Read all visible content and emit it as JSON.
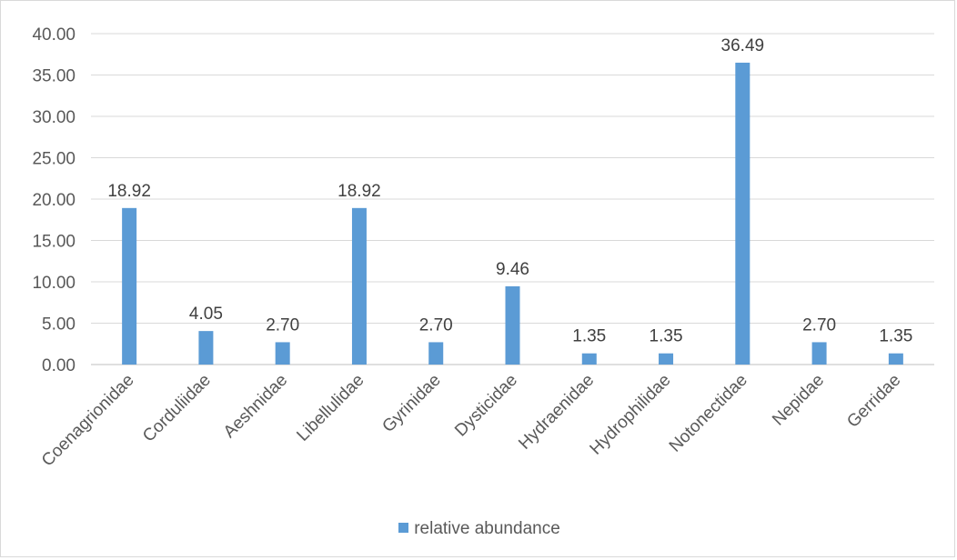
{
  "chart_data": {
    "type": "bar",
    "categories": [
      "Coenagrionidae",
      "Corduliidae",
      "Aeshnidae",
      "Libellulidae",
      "Gyrinidae",
      "Dysticidae",
      "Hydraenidae",
      "Hydrophilidae",
      "Notonectidae",
      "Nepidae",
      "Gerridae"
    ],
    "series": [
      {
        "name": "relative abundance",
        "values": [
          18.92,
          4.05,
          2.7,
          18.92,
          2.7,
          9.46,
          1.35,
          1.35,
          36.49,
          2.7,
          1.35
        ],
        "labels": [
          "18.92",
          "4.05",
          "2.70",
          "18.92",
          "2.70",
          "9.46",
          "1.35",
          "1.35",
          "36.49",
          "2.70",
          "1.35"
        ],
        "color": "#5b9bd5"
      }
    ],
    "y_ticks": [
      "0.00",
      "5.00",
      "10.00",
      "15.00",
      "20.00",
      "25.00",
      "30.00",
      "35.00",
      "40.00"
    ],
    "ylim": [
      0,
      40
    ],
    "grid": true,
    "legend_position": "bottom"
  }
}
